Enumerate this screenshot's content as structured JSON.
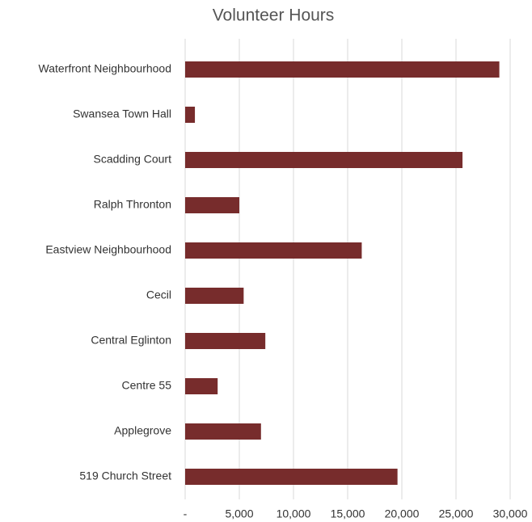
{
  "chart_data": {
    "type": "bar",
    "orientation": "horizontal",
    "title": "Volunteer Hours",
    "categories": [
      "Waterfront Neighbourhood",
      "Swansea Town Hall",
      "Scadding Court",
      "Ralph Thronton",
      "Eastview Neighbourhood",
      "Cecil",
      "Central Eglinton",
      "Centre 55",
      "Applegrove",
      "519 Church Street"
    ],
    "values": [
      29000,
      900,
      25600,
      5000,
      16300,
      5400,
      7400,
      3000,
      7000,
      19600
    ],
    "color": "#772c2c",
    "xlim": [
      0,
      30000
    ],
    "xticks": [
      {
        "value": 0,
        "label": "-"
      },
      {
        "value": 5000,
        "label": "5,000"
      },
      {
        "value": 10000,
        "label": "10,000"
      },
      {
        "value": 15000,
        "label": "15,000"
      },
      {
        "value": 20000,
        "label": "20,000"
      },
      {
        "value": 25000,
        "label": "25,000"
      },
      {
        "value": 30000,
        "label": "30,000"
      }
    ],
    "grid": true
  }
}
